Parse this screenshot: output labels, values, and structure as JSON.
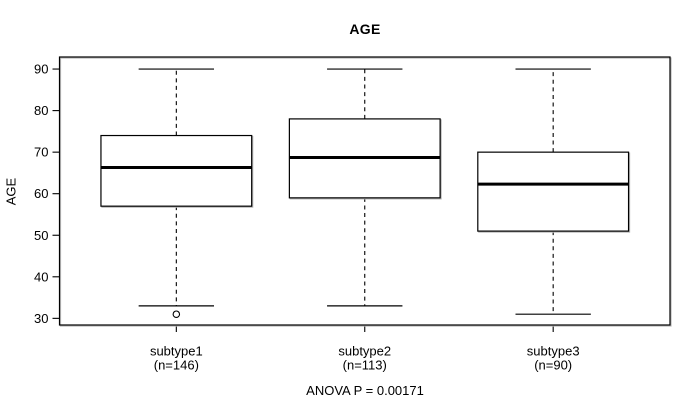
{
  "title": "AGE",
  "footer": "ANOVA P = 0.00171",
  "colors": {
    "foreground": "#000000",
    "background": "#ffffff",
    "box_fill": "#ffffff",
    "edge_shadow": "#b8b8b8"
  },
  "chart_data": {
    "type": "boxplot",
    "title": "AGE",
    "xlabel": "",
    "ylabel": "AGE",
    "annotation": "ANOVA P = 0.00171",
    "categories": [
      "subtype1",
      "subtype2",
      "subtype3"
    ],
    "category_sublabels": [
      "(n=146)",
      "(n=113)",
      "(n=90)"
    ],
    "y_ticks": [
      30,
      40,
      50,
      60,
      70,
      80,
      90
    ],
    "ylim": [
      28.4,
      92.9
    ],
    "xlim": [
      0.38,
      3.62
    ],
    "box_width": 0.8,
    "grid": false,
    "legend": "none",
    "series": [
      {
        "name": "subtype1",
        "n": 146,
        "whisker_low": 33,
        "q1": 57,
        "median": 66.3,
        "q3": 74,
        "whisker_high": 90,
        "outliers": [
          31
        ]
      },
      {
        "name": "subtype2",
        "n": 113,
        "whisker_low": 33,
        "q1": 59,
        "median": 68.7,
        "q3": 78,
        "whisker_high": 90,
        "outliers": []
      },
      {
        "name": "subtype3",
        "n": 90,
        "whisker_low": 31,
        "q1": 51,
        "median": 62.3,
        "q3": 70,
        "whisker_high": 90,
        "outliers": []
      }
    ]
  }
}
